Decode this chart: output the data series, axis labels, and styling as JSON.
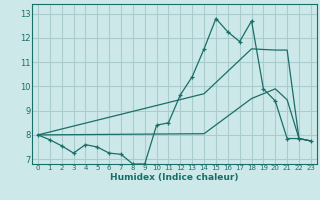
{
  "xlabel": "Humidex (Indice chaleur)",
  "background_color": "#cce8e8",
  "grid_color": "#aacccc",
  "line_color": "#1a6e6a",
  "xlim": [
    -0.5,
    23.5
  ],
  "ylim": [
    6.8,
    13.4
  ],
  "xticks": [
    0,
    1,
    2,
    3,
    4,
    5,
    6,
    7,
    8,
    9,
    10,
    11,
    12,
    13,
    14,
    15,
    16,
    17,
    18,
    19,
    20,
    21,
    22,
    23
  ],
  "yticks": [
    7,
    8,
    9,
    10,
    11,
    12,
    13
  ],
  "line1_x": [
    0,
    1,
    2,
    3,
    4,
    5,
    6,
    7,
    8,
    9,
    10,
    11,
    12,
    13,
    14,
    15,
    16,
    17,
    18,
    19,
    20,
    21,
    22,
    23
  ],
  "line1_y": [
    8.0,
    7.8,
    7.55,
    7.25,
    7.6,
    7.5,
    7.25,
    7.2,
    6.8,
    6.8,
    8.4,
    8.5,
    9.65,
    10.4,
    11.55,
    12.8,
    12.25,
    11.85,
    12.7,
    9.9,
    9.4,
    7.85,
    7.85,
    7.75
  ],
  "line2_x": [
    0,
    14,
    18,
    20,
    21,
    22,
    23
  ],
  "line2_y": [
    8.0,
    9.7,
    11.55,
    11.5,
    11.5,
    7.85,
    7.75
  ],
  "line3_x": [
    0,
    14,
    18,
    20,
    21,
    22,
    23
  ],
  "line3_y": [
    8.0,
    8.05,
    9.5,
    9.9,
    9.45,
    7.85,
    7.75
  ]
}
